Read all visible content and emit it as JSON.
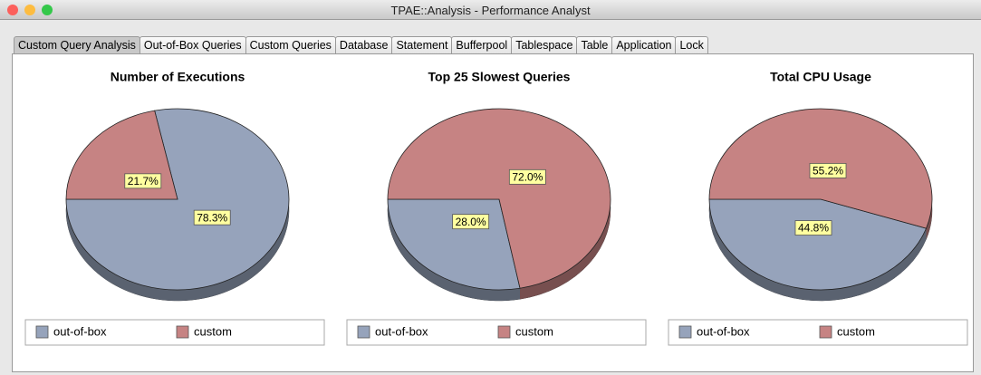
{
  "window": {
    "title": "TPAE::Analysis - Performance Analyst"
  },
  "tabs": [
    "Custom Query Analysis",
    "Out-of-Box Queries",
    "Custom Queries",
    "Database",
    "Statement",
    "Bufferpool",
    "Tablespace",
    "Table",
    "Application",
    "Lock"
  ],
  "selected_tab": 0,
  "chart_data": [
    {
      "type": "pie",
      "title": "Number of Executions",
      "categories": [
        "out-of-box",
        "custom"
      ],
      "values": [
        78.3,
        21.7
      ],
      "value_labels": [
        "78.3%",
        "21.7%"
      ],
      "colors": [
        "#96a3bb",
        "#c68383"
      ]
    },
    {
      "type": "pie",
      "title": "Top 25 Slowest Queries",
      "categories": [
        "out-of-box",
        "custom"
      ],
      "values": [
        28.0,
        72.0
      ],
      "value_labels": [
        "28.0%",
        "72.0%"
      ],
      "colors": [
        "#96a3bb",
        "#c68383"
      ]
    },
    {
      "type": "pie",
      "title": "Total CPU Usage",
      "categories": [
        "out-of-box",
        "custom"
      ],
      "values": [
        44.8,
        55.2
      ],
      "value_labels": [
        "44.8%",
        "55.2%"
      ],
      "colors": [
        "#96a3bb",
        "#c68383"
      ]
    }
  ]
}
